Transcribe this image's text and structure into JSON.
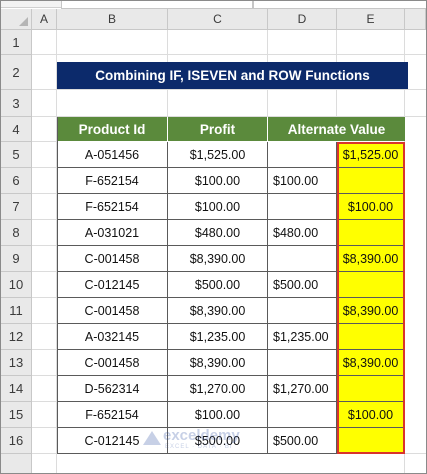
{
  "columns": [
    "A",
    "B",
    "C",
    "D",
    "E"
  ],
  "rows": [
    "1",
    "2",
    "3",
    "4",
    "5",
    "6",
    "7",
    "8",
    "9",
    "10",
    "11",
    "12",
    "13",
    "14",
    "15",
    "16"
  ],
  "title": "Combining IF, ISEVEN and ROW Functions",
  "table": {
    "headers": [
      "Product Id",
      "Profit",
      "Alternate Value"
    ],
    "rows": [
      {
        "product_id": "A-051456",
        "profit": "$1,525.00",
        "d": "",
        "e": "$1,525.00"
      },
      {
        "product_id": "F-652154",
        "profit": "$100.00",
        "d": "$100.00",
        "e": ""
      },
      {
        "product_id": "F-652154",
        "profit": "$100.00",
        "d": "",
        "e": "$100.00"
      },
      {
        "product_id": "A-031021",
        "profit": "$480.00",
        "d": "$480.00",
        "e": ""
      },
      {
        "product_id": "C-001458",
        "profit": "$8,390.00",
        "d": "",
        "e": "$8,390.00"
      },
      {
        "product_id": "C-012145",
        "profit": "$500.00",
        "d": "$500.00",
        "e": ""
      },
      {
        "product_id": "C-001458",
        "profit": "$8,390.00",
        "d": "",
        "e": "$8,390.00"
      },
      {
        "product_id": "A-032145",
        "profit": "$1,235.00",
        "d": "$1,235.00",
        "e": ""
      },
      {
        "product_id": "C-001458",
        "profit": "$8,390.00",
        "d": "",
        "e": "$8,390.00"
      },
      {
        "product_id": "D-562314",
        "profit": "$1,270.00",
        "d": "$1,270.00",
        "e": ""
      },
      {
        "product_id": "F-652154",
        "profit": "$100.00",
        "d": "",
        "e": "$100.00"
      },
      {
        "product_id": "C-012145",
        "profit": "$500.00",
        "d": "$500.00",
        "e": ""
      }
    ]
  },
  "watermark": {
    "name": "exceldemy",
    "tagline": "EXCEL · DATA · BI"
  },
  "colors": {
    "title_bg": "#0c2a6b",
    "header_bg": "#5b8a3c",
    "highlight": "#ffff00",
    "selection_border": "#d9342b"
  }
}
